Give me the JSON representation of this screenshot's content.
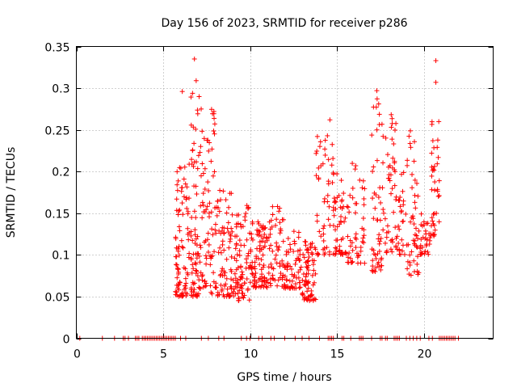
{
  "chart_data": {
    "type": "scatter",
    "title": "Day 156 of 2023, SRMTID for receiver p286",
    "xlabel": "GPS time / hours",
    "ylabel": "SRMTID / TECUs",
    "xlim": [
      0,
      24
    ],
    "ylim": [
      0,
      0.35
    ],
    "xticks": [
      "0",
      "5",
      "10",
      "15",
      "20"
    ],
    "xtick_values": [
      0,
      5,
      10,
      15,
      20
    ],
    "yticks": [
      "0",
      "0.05",
      "0.1",
      "0.15",
      "0.2",
      "0.25",
      "0.3",
      "0.35"
    ],
    "ytick_values": [
      0,
      0.05,
      0.1,
      0.15,
      0.2,
      0.25,
      0.3,
      0.35
    ],
    "grid": true,
    "marker": "+",
    "marker_color": "#ff0000",
    "series": [
      {
        "name": "SRMTID",
        "zero_x": [
          0.2,
          1.5,
          2.2,
          2.7,
          2.8,
          3.0,
          3.4,
          3.5,
          3.6,
          3.8,
          3.9,
          4.0,
          4.1,
          4.2,
          4.3,
          4.4,
          4.5,
          4.6,
          4.7,
          4.8,
          4.9,
          5.0,
          5.1,
          5.2,
          5.3,
          5.4,
          5.5,
          5.6,
          5.7,
          6.0,
          6.3,
          7.2,
          7.6,
          8.2,
          8.5,
          9.5,
          9.8,
          10.0,
          10.5,
          10.7,
          11.2,
          11.4,
          12.0,
          12.6,
          13.0,
          13.4,
          14.0,
          14.5,
          14.6,
          14.7,
          14.8,
          15.3,
          15.4,
          15.8,
          16.3,
          16.4,
          16.5,
          17.0,
          17.5,
          17.6,
          17.8,
          17.9,
          18.3,
          18.4,
          18.5,
          18.6,
          19.0,
          19.2,
          19.4,
          19.6,
          19.8,
          20.3,
          20.5,
          20.9,
          21.0,
          21.1,
          21.2,
          21.3,
          21.4,
          21.5,
          21.6,
          21.7,
          21.8,
          22.0
        ],
        "clusters": [
          {
            "x": [
              5.7,
              6.5
            ],
            "y": [
              0.05,
              0.21
            ],
            "n": 90
          },
          {
            "x": [
              6.6,
              7.2
            ],
            "y": [
              0.05,
              0.3
            ],
            "n": 80
          },
          {
            "x": [
              7.2,
              8.0
            ],
            "y": [
              0.05,
              0.28
            ],
            "n": 70
          },
          {
            "x": [
              8.0,
              9.0
            ],
            "y": [
              0.05,
              0.18
            ],
            "n": 80
          },
          {
            "x": [
              9.0,
              10.0
            ],
            "y": [
              0.045,
              0.16
            ],
            "n": 80
          },
          {
            "x": [
              10.0,
              11.0
            ],
            "y": [
              0.06,
              0.14
            ],
            "n": 90
          },
          {
            "x": [
              11.0,
              12.0
            ],
            "y": [
              0.06,
              0.16
            ],
            "n": 60
          },
          {
            "x": [
              12.0,
              13.0
            ],
            "y": [
              0.06,
              0.13
            ],
            "n": 60
          },
          {
            "x": [
              13.0,
              13.8
            ],
            "y": [
              0.045,
              0.12
            ],
            "n": 70
          },
          {
            "x": [
              13.8,
              14.8
            ],
            "y": [
              0.1,
              0.25
            ],
            "n": 50
          },
          {
            "x": [
              14.8,
              15.6
            ],
            "y": [
              0.1,
              0.2
            ],
            "n": 50
          },
          {
            "x": [
              15.6,
              16.6
            ],
            "y": [
              0.09,
              0.21
            ],
            "n": 50
          },
          {
            "x": [
              17.0,
              17.6
            ],
            "y": [
              0.08,
              0.3
            ],
            "n": 50
          },
          {
            "x": [
              17.6,
              18.4
            ],
            "y": [
              0.1,
              0.27
            ],
            "n": 50
          },
          {
            "x": [
              18.4,
              19.0
            ],
            "y": [
              0.1,
              0.2
            ],
            "n": 30
          },
          {
            "x": [
              19.0,
              19.8
            ],
            "y": [
              0.075,
              0.25
            ],
            "n": 50
          },
          {
            "x": [
              19.8,
              20.4
            ],
            "y": [
              0.1,
              0.15
            ],
            "n": 30
          },
          {
            "x": [
              20.4,
              20.9
            ],
            "y": [
              0.12,
              0.26
            ],
            "n": 40
          }
        ],
        "highlights": [
          {
            "x": 6.8,
            "y": 0.335
          },
          {
            "x": 20.7,
            "y": 0.333
          },
          {
            "x": 20.7,
            "y": 0.307
          },
          {
            "x": 17.3,
            "y": 0.297
          },
          {
            "x": 6.1,
            "y": 0.296
          },
          {
            "x": 6.9,
            "y": 0.309
          },
          {
            "x": 14.6,
            "y": 0.262
          }
        ]
      }
    ]
  }
}
